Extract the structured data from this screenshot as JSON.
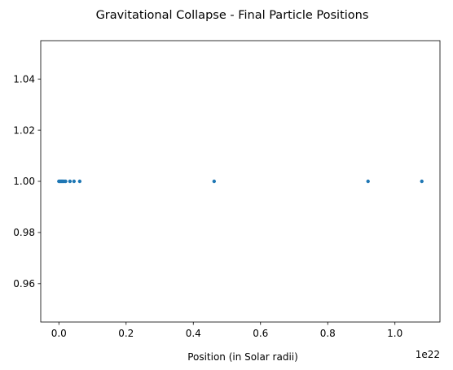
{
  "chart_data": {
    "type": "scatter",
    "title": "Gravitational Collapse - Final Particle Positions",
    "xlabel": "Position (in Solar radii)",
    "ylabel": "",
    "x_offset_label": "1e22",
    "x_tick_labels": [
      "0.0",
      "0.2",
      "0.4",
      "0.6",
      "0.8",
      "1.0"
    ],
    "x_tick_values": [
      0.0,
      0.2,
      0.4,
      0.6,
      0.8,
      1.0
    ],
    "y_tick_labels": [
      "0.96",
      "0.98",
      "1.00",
      "1.02",
      "1.04"
    ],
    "y_tick_values": [
      0.96,
      0.98,
      1.0,
      1.02,
      1.04
    ],
    "xlim": [
      -0.054,
      1.134
    ],
    "ylim": [
      0.945,
      1.055
    ],
    "grid": false,
    "color": "#1f77b4",
    "points": [
      {
        "x": 0.0,
        "y": 1.0
      },
      {
        "x": 0.003,
        "y": 1.0
      },
      {
        "x": 0.006,
        "y": 1.0
      },
      {
        "x": 0.009,
        "y": 1.0
      },
      {
        "x": 0.012,
        "y": 1.0
      },
      {
        "x": 0.016,
        "y": 1.0
      },
      {
        "x": 0.02,
        "y": 1.0
      },
      {
        "x": 0.033,
        "y": 1.0
      },
      {
        "x": 0.045,
        "y": 1.0
      },
      {
        "x": 0.062,
        "y": 1.0
      },
      {
        "x": 0.462,
        "y": 1.0
      },
      {
        "x": 0.92,
        "y": 1.0
      },
      {
        "x": 1.08,
        "y": 1.0
      }
    ]
  }
}
